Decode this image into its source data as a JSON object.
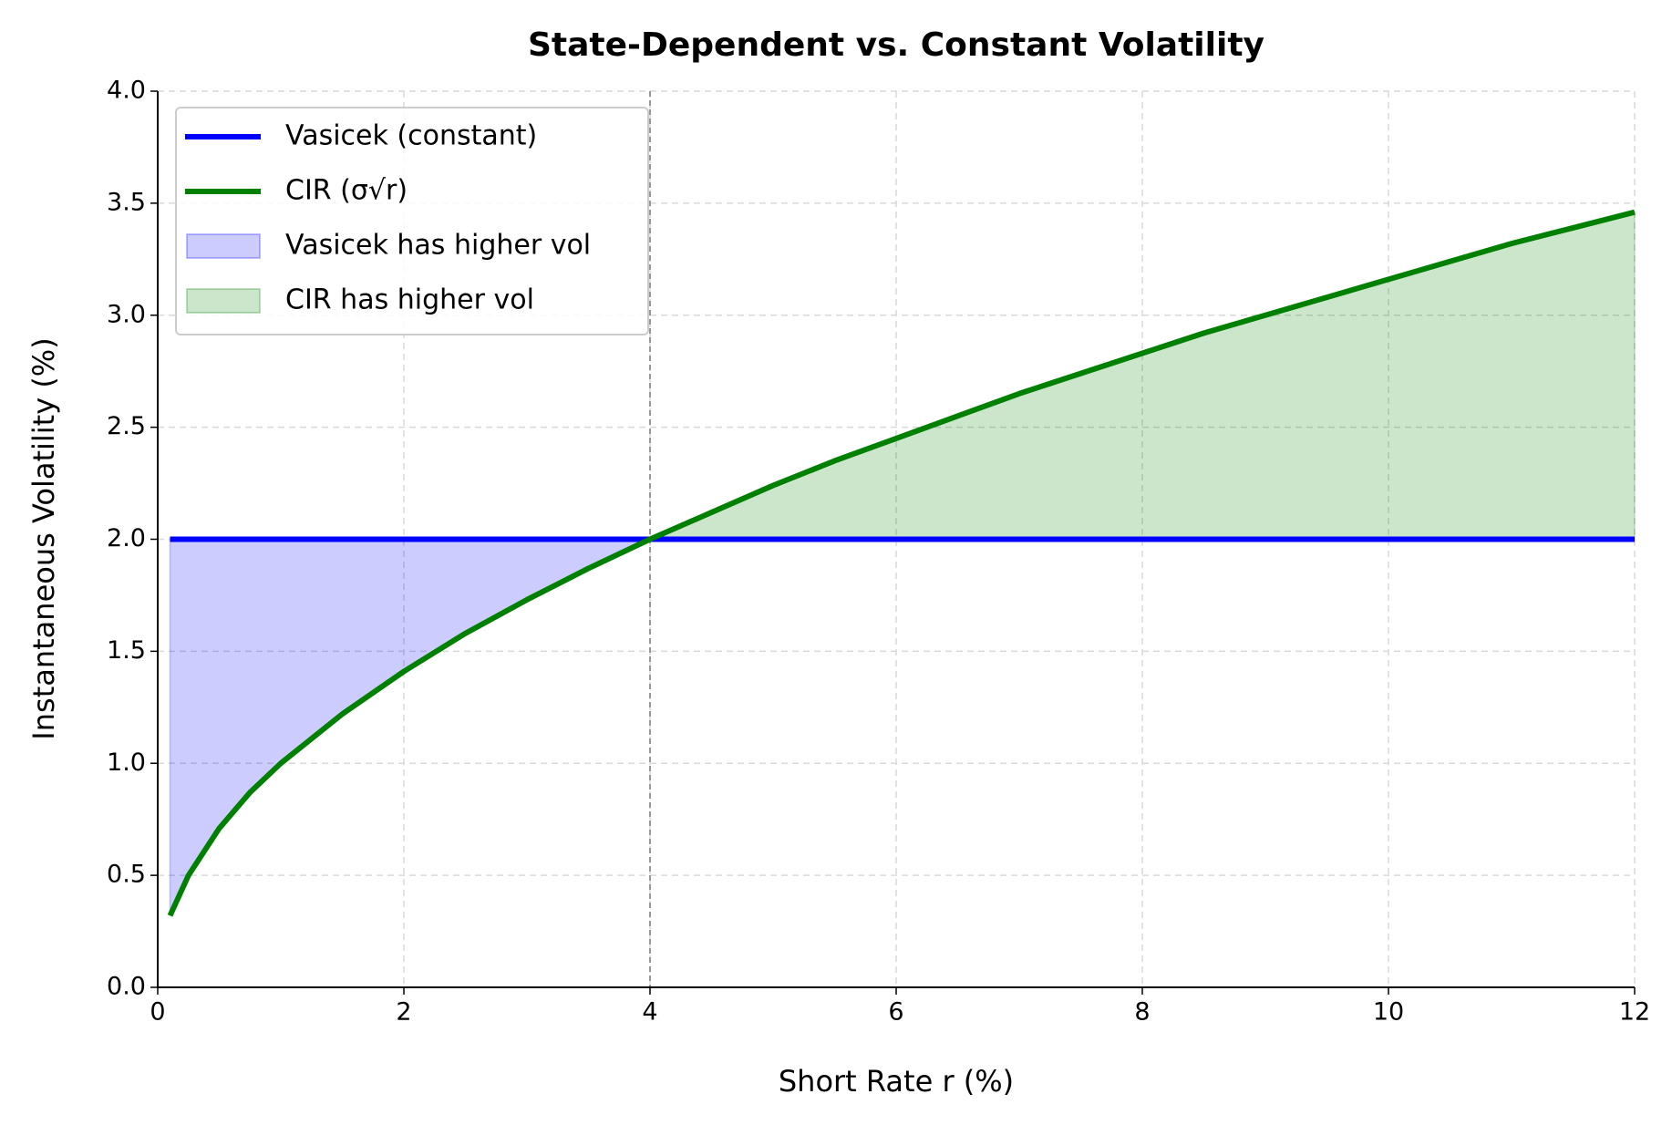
{
  "chart_data": {
    "type": "line",
    "title": "State-Dependent vs. Constant Volatility",
    "xlabel": "Short Rate r (%)",
    "ylabel": "Instantaneous Volatility (%)",
    "x": [
      0.1,
      0.25,
      0.5,
      0.75,
      1,
      1.5,
      2,
      2.5,
      3,
      3.5,
      4,
      4.5,
      5,
      5.5,
      6,
      6.5,
      7,
      7.5,
      8,
      8.5,
      9,
      9.5,
      10,
      10.5,
      11,
      11.5,
      12
    ],
    "series": [
      {
        "name": "Vasicek (constant)",
        "color": "#0000ff",
        "values": [
          2,
          2,
          2,
          2,
          2,
          2,
          2,
          2,
          2,
          2,
          2,
          2,
          2,
          2,
          2,
          2,
          2,
          2,
          2,
          2,
          2,
          2,
          2,
          2,
          2,
          2,
          2
        ]
      },
      {
        "name": "CIR (σ√r)",
        "color": "#008000",
        "values": [
          0.32,
          0.5,
          0.71,
          0.87,
          1,
          1.22,
          1.41,
          1.58,
          1.73,
          1.87,
          2,
          2.12,
          2.24,
          2.35,
          2.45,
          2.55,
          2.65,
          2.74,
          2.83,
          2.92,
          3,
          3.08,
          3.16,
          3.24,
          3.32,
          3.39,
          3.46
        ]
      }
    ],
    "fills": [
      {
        "name": "Vasicek has higher vol",
        "color": "#0000ff"
      },
      {
        "name": "CIR has higher vol",
        "color": "#008000"
      }
    ],
    "vline": 4,
    "xlim": [
      0,
      12
    ],
    "xticks": [
      0,
      2,
      4,
      6,
      8,
      10,
      12
    ],
    "ylim": [
      0,
      4
    ],
    "yticks": [
      {
        "value": 0,
        "label": "0.0"
      },
      0.5,
      {
        "value": 1,
        "label": "1.0"
      },
      1.5,
      {
        "value": 2,
        "label": "2.0"
      },
      2.5,
      {
        "value": 3,
        "label": "3.0"
      },
      3.5,
      {
        "value": 4,
        "label": "4.0"
      }
    ],
    "grid": true,
    "legend": "upper left"
  }
}
